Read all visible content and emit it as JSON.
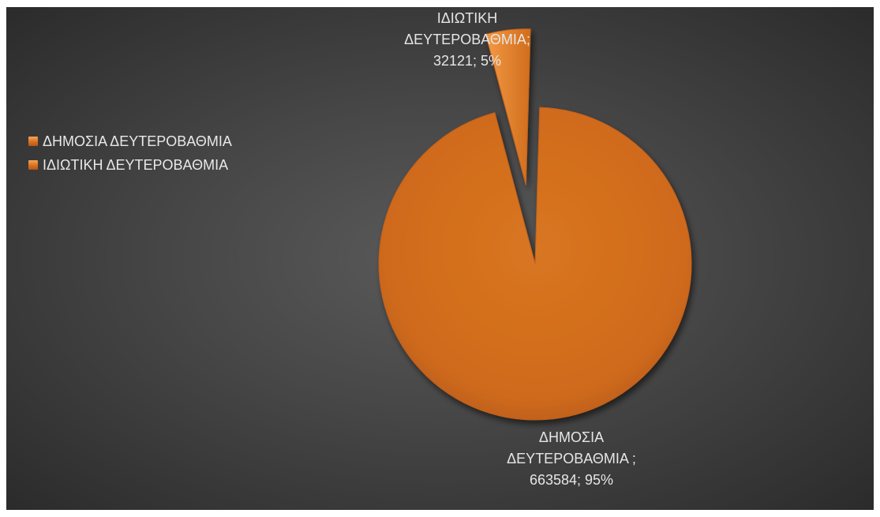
{
  "chart_data": {
    "type": "pie",
    "title": "",
    "categories": [
      "ΔΗΜΟΣΙΑ ΔΕΥΤΕΡΟΒΑΘΜΙΑ",
      "ΙΔΙΩΤΙΚΗ ΔΕΥΤΕΡΟΒΑΘΜΙΑ"
    ],
    "values": [
      663584,
      32121
    ],
    "percentages": [
      95,
      5
    ],
    "legend": {
      "position": "left",
      "entries": [
        "ΔΗΜΟΣΙΑ ΔΕΥΤΕΡΟΒΑΘΜΙΑ",
        "ΙΔΙΩΤΙΚΗ ΔΕΥΤΕΡΟΒΑΘΜΙΑ"
      ]
    },
    "data_labels": [
      {
        "line1": "ΔΗΜΟΣΙΑ",
        "line2": "ΔΕΥΤΕΡΟΒΑΘΜΙΑ ;",
        "line3": "663584; 95%"
      },
      {
        "line1": "ΙΔΙΩΤΙΚΗ",
        "line2": "ΔΕΥΤΕΡΟΒΑΘΜΙΑ;",
        "line3": "32121; 5%"
      }
    ],
    "exploded_slice": "ΙΔΙΩΤΙΚΗ ΔΕΥΤΕΡΟΒΑΘΜΙΑ",
    "colors": {
      "slice_fill": "#d46f1c",
      "slice_highlight": "#f0a050",
      "slice_shadow": "#a9521a",
      "background": "#474747",
      "text": "#e6e6e6"
    }
  }
}
